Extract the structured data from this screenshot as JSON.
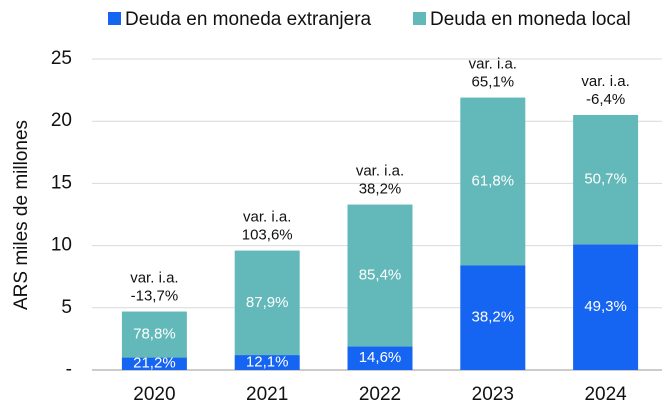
{
  "chart_data": {
    "type": "stacked_bar",
    "ylabel": "ARS miles de millones",
    "categories": [
      "2020",
      "2021",
      "2022",
      "2023",
      "2024"
    ],
    "series": [
      {
        "name": "Deuda en moneda extranjera",
        "color": "#1664f2",
        "values": [
          1.0,
          1.2,
          1.9,
          8.4,
          10.1
        ],
        "shares": [
          21.2,
          12.1,
          14.6,
          38.2,
          49.3
        ],
        "share_labels": [
          "21,2%",
          "12,1%",
          "14,6%",
          "38,2%",
          "49,3%"
        ]
      },
      {
        "name": "Deuda en moneda local",
        "color": "#63b9b9",
        "values": [
          3.7,
          8.4,
          11.4,
          13.5,
          10.4
        ],
        "shares": [
          78.8,
          87.9,
          85.4,
          61.8,
          50.7
        ],
        "share_labels": [
          "78,8%",
          "87,9%",
          "85,4%",
          "61,8%",
          "50,7%"
        ]
      }
    ],
    "growth_prefix": "var. i.a.",
    "growth": [
      -13.7,
      103.6,
      38.2,
      65.1,
      -6.4
    ],
    "growth_labels": [
      "-13,7%",
      "103,6%",
      "38,2%",
      "65,1%",
      "-6,4%"
    ],
    "ylim": [
      0,
      25
    ],
    "yticks": [
      {
        "value": 0,
        "label": "-"
      },
      5,
      10,
      15,
      20,
      25
    ],
    "grid": true,
    "legend": "top"
  }
}
